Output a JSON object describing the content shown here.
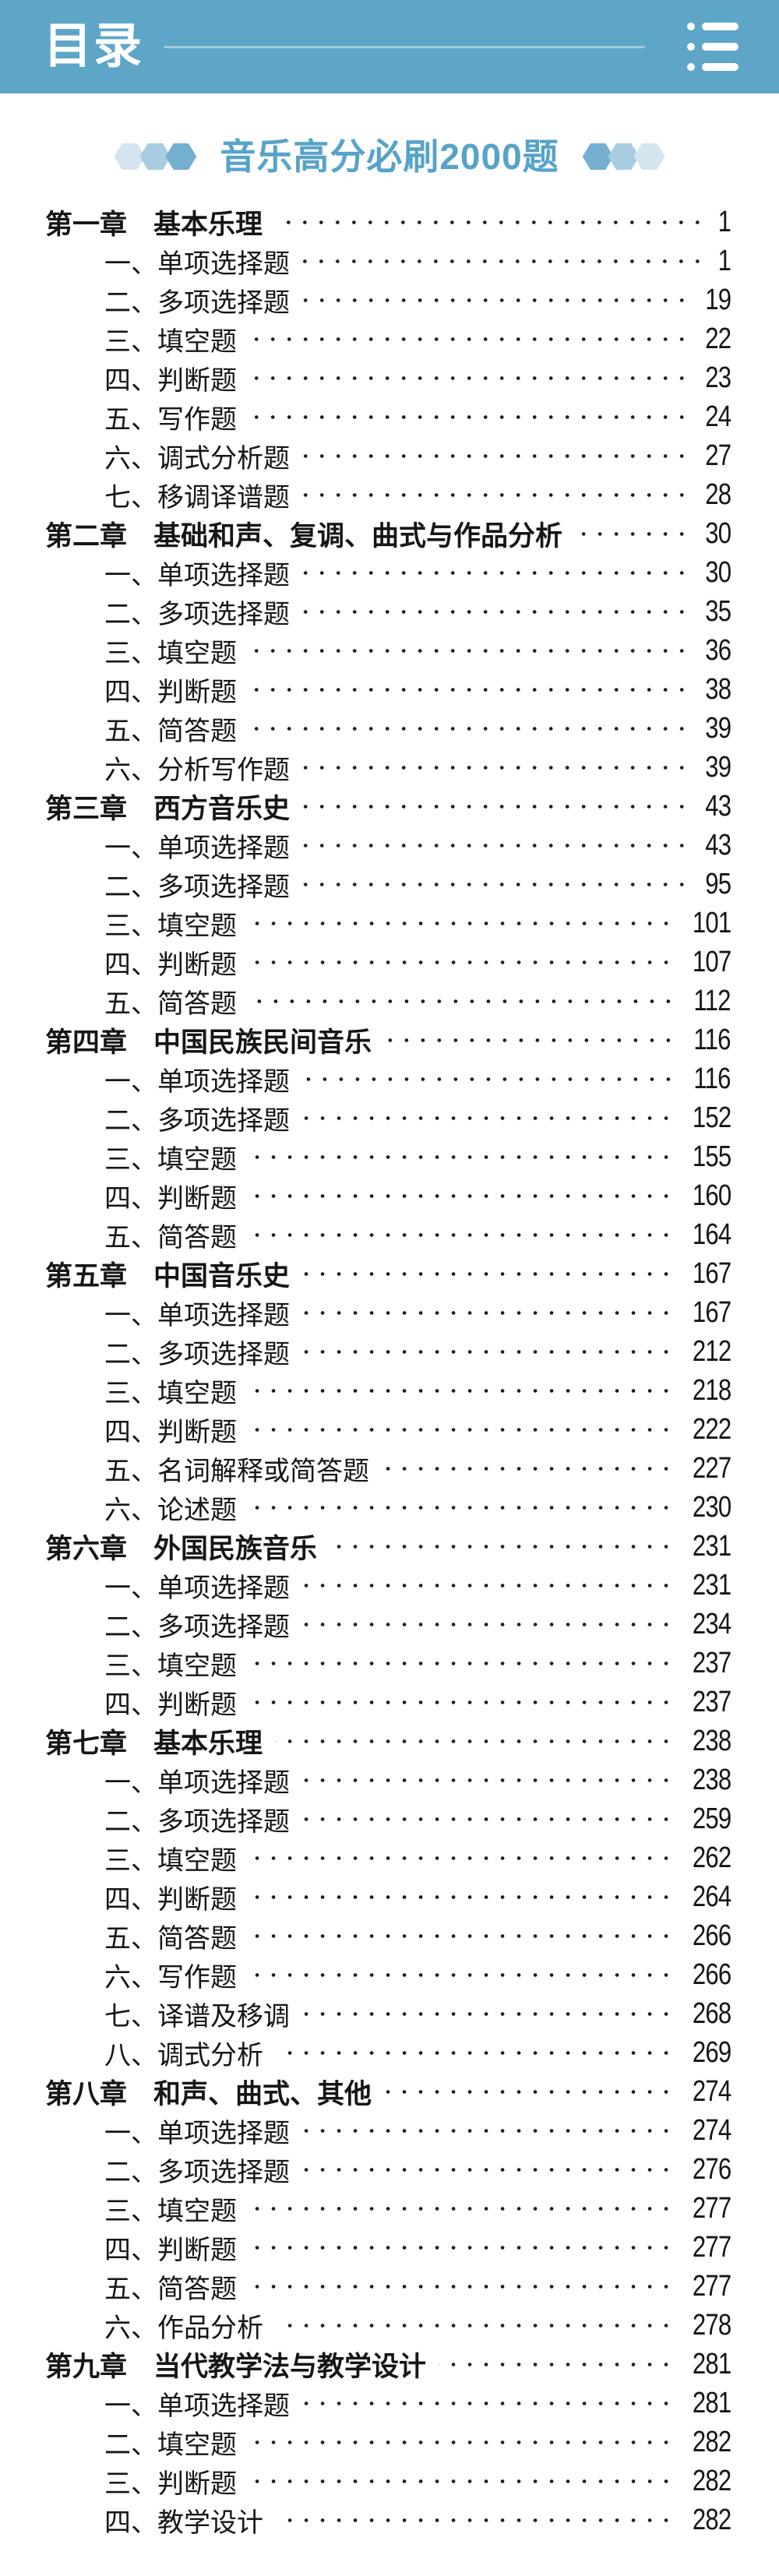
{
  "header": {
    "title": "目录",
    "menu_icon": "list-menu-icon"
  },
  "banner": {
    "title": "音乐高分必刷2000题",
    "decor": "hexagons"
  },
  "colors": {
    "appbar_bg": "#5ea6c8",
    "banner_title": "#57a3c8",
    "hex_light": "#d4e5ef",
    "hex_mid": "#a9cde0",
    "hex_dark": "#74afd1",
    "text": "#161616"
  },
  "toc": {
    "chapters": [
      {
        "label": "第一章",
        "title": "基本乐理",
        "page": "1",
        "items": [
          {
            "label": "一、",
            "title": "单项选择题",
            "page": "1"
          },
          {
            "label": "二、",
            "title": "多项选择题",
            "page": "19"
          },
          {
            "label": "三、",
            "title": "填空题",
            "page": "22"
          },
          {
            "label": "四、",
            "title": "判断题",
            "page": "23"
          },
          {
            "label": "五、",
            "title": "写作题",
            "page": "24"
          },
          {
            "label": "六、",
            "title": "调式分析题",
            "page": "27"
          },
          {
            "label": "七、",
            "title": "移调译谱题",
            "page": "28"
          }
        ]
      },
      {
        "label": "第二章",
        "title": "基础和声、复调、曲式与作品分析",
        "page": "30",
        "items": [
          {
            "label": "一、",
            "title": "单项选择题",
            "page": "30"
          },
          {
            "label": "二、",
            "title": "多项选择题",
            "page": "35"
          },
          {
            "label": "三、",
            "title": "填空题",
            "page": "36"
          },
          {
            "label": "四、",
            "title": "判断题",
            "page": "38"
          },
          {
            "label": "五、",
            "title": "简答题",
            "page": "39"
          },
          {
            "label": "六、",
            "title": "分析写作题",
            "page": "39"
          }
        ]
      },
      {
        "label": "第三章",
        "title": "西方音乐史",
        "page": "43",
        "items": [
          {
            "label": "一、",
            "title": "单项选择题",
            "page": "43"
          },
          {
            "label": "二、",
            "title": "多项选择题",
            "page": "95"
          },
          {
            "label": "三、",
            "title": "填空题",
            "page": "101"
          },
          {
            "label": "四、",
            "title": "判断题",
            "page": "107"
          },
          {
            "label": "五、",
            "title": "简答题",
            "page": "112"
          }
        ]
      },
      {
        "label": "第四章",
        "title": "中国民族民间音乐",
        "page": "116",
        "items": [
          {
            "label": "一、",
            "title": "单项选择题",
            "page": "116"
          },
          {
            "label": "二、",
            "title": "多项选择题",
            "page": "152"
          },
          {
            "label": "三、",
            "title": "填空题",
            "page": "155"
          },
          {
            "label": "四、",
            "title": "判断题",
            "page": "160"
          },
          {
            "label": "五、",
            "title": "简答题",
            "page": "164"
          }
        ]
      },
      {
        "label": "第五章",
        "title": "中国音乐史",
        "page": "167",
        "items": [
          {
            "label": "一、",
            "title": "单项选择题",
            "page": "167"
          },
          {
            "label": "二、",
            "title": "多项选择题",
            "page": "212"
          },
          {
            "label": "三、",
            "title": "填空题",
            "page": "218"
          },
          {
            "label": "四、",
            "title": "判断题",
            "page": "222"
          },
          {
            "label": "五、",
            "title": "名词解释或简答题",
            "page": "227"
          },
          {
            "label": "六、",
            "title": "论述题",
            "page": "230"
          }
        ]
      },
      {
        "label": "第六章",
        "title": "外国民族音乐",
        "page": "231",
        "items": [
          {
            "label": "一、",
            "title": "单项选择题",
            "page": "231"
          },
          {
            "label": "二、",
            "title": "多项选择题",
            "page": "234"
          },
          {
            "label": "三、",
            "title": "填空题",
            "page": "237"
          },
          {
            "label": "四、",
            "title": "判断题",
            "page": "237"
          }
        ]
      },
      {
        "label": "第七章",
        "title": "基本乐理",
        "page": "238",
        "items": [
          {
            "label": "一、",
            "title": "单项选择题",
            "page": "238"
          },
          {
            "label": "二、",
            "title": "多项选择题",
            "page": "259"
          },
          {
            "label": "三、",
            "title": "填空题",
            "page": "262"
          },
          {
            "label": "四、",
            "title": "判断题",
            "page": "264"
          },
          {
            "label": "五、",
            "title": "简答题",
            "page": "266"
          },
          {
            "label": "六、",
            "title": "写作题",
            "page": "266"
          },
          {
            "label": "七、",
            "title": "译谱及移调",
            "page": "268"
          },
          {
            "label": "八、",
            "title": "调式分析",
            "page": "269"
          }
        ]
      },
      {
        "label": "第八章",
        "title": "和声、曲式、其他",
        "page": "274",
        "items": [
          {
            "label": "一、",
            "title": "单项选择题",
            "page": "274"
          },
          {
            "label": "二、",
            "title": "多项选择题",
            "page": "276"
          },
          {
            "label": "三、",
            "title": "填空题",
            "page": "277"
          },
          {
            "label": "四、",
            "title": "判断题",
            "page": "277"
          },
          {
            "label": "五、",
            "title": "简答题",
            "page": "277"
          },
          {
            "label": "六、",
            "title": "作品分析",
            "page": "278"
          }
        ]
      },
      {
        "label": "第九章",
        "title": "当代教学法与教学设计",
        "page": "281",
        "items": [
          {
            "label": "一、",
            "title": "单项选择题",
            "page": "281"
          },
          {
            "label": "二、",
            "title": "填空题",
            "page": "282"
          },
          {
            "label": "三、",
            "title": "判断题",
            "page": "282"
          },
          {
            "label": "四、",
            "title": "教学设计",
            "page": "282"
          }
        ]
      }
    ]
  }
}
